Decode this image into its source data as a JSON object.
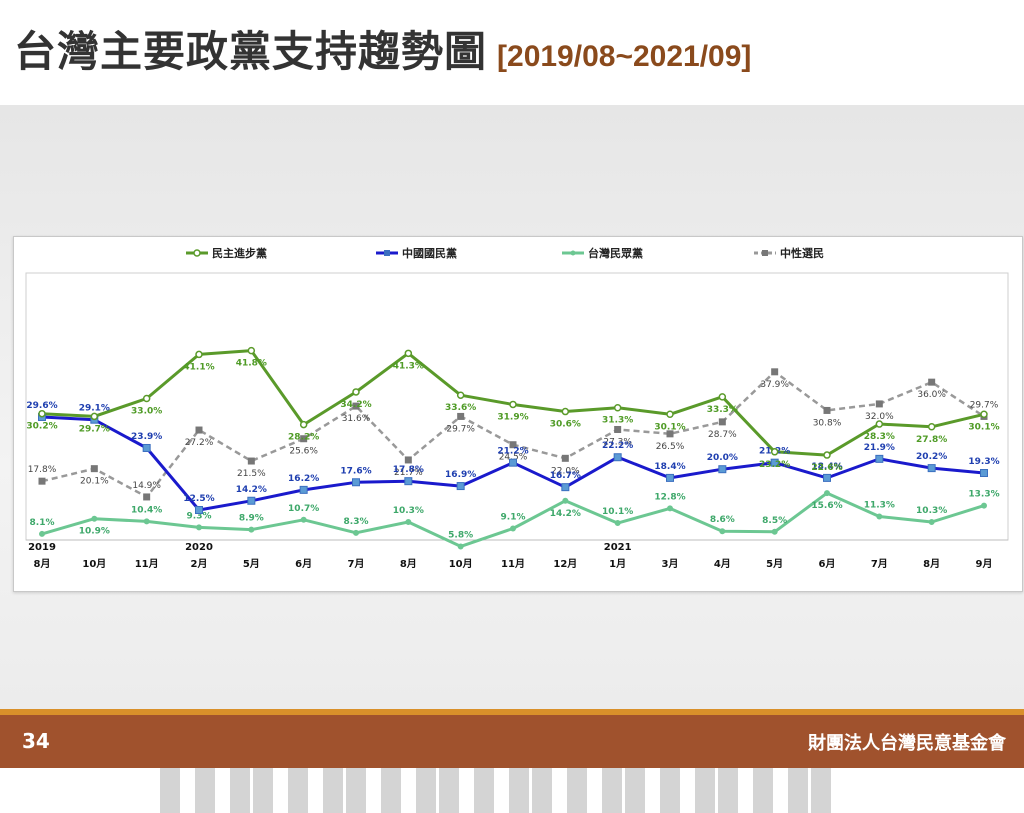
{
  "slide": {
    "title": "台灣主要政黨支持趨勢圖",
    "date_range": "[2019/08~2021/09]",
    "page_number": "34",
    "organization": "財團法人台灣民意基金會"
  },
  "chart_data": {
    "type": "line",
    "categories": [
      "8月",
      "10月",
      "11月",
      "2月",
      "5月",
      "6月",
      "7月",
      "8月",
      "10月",
      "11月",
      "12月",
      "1月",
      "3月",
      "4月",
      "5月",
      "6月",
      "7月",
      "8月",
      "9月"
    ],
    "year_labels": [
      {
        "index": 0,
        "label": "2019"
      },
      {
        "index": 3,
        "label": "2020"
      },
      {
        "index": 11,
        "label": "2021"
      }
    ],
    "ylim": [
      0,
      50
    ],
    "grid": false,
    "legend_position": "top",
    "series": [
      {
        "name": "民主進步黨",
        "color": "#5a9a2a",
        "label_color": "#4f9b26",
        "dash": false,
        "marker": "circle",
        "values": [
          30.2,
          29.7,
          33.0,
          41.1,
          41.8,
          28.2,
          34.2,
          41.3,
          33.6,
          31.9,
          30.6,
          31.3,
          30.1,
          33.3,
          23.2,
          22.6,
          28.3,
          27.8,
          30.1
        ],
        "labels": [
          "30.2%",
          "29.7%",
          "33.0%",
          "41.1%",
          "41.8%",
          "28.2%",
          "34.2%",
          "41.3%",
          "33.6%",
          "31.9%",
          "30.6%",
          "31.3%",
          "30.1%",
          "33.3%",
          "23.2%",
          "22.6%",
          "28.3%",
          "27.8%",
          "30.1%"
        ]
      },
      {
        "name": "中國國民黨",
        "color": "#1a1acc",
        "label_color": "#1f3fb0",
        "dash": false,
        "marker": "square",
        "values": [
          29.6,
          29.1,
          23.9,
          12.5,
          14.2,
          16.2,
          17.6,
          17.8,
          16.9,
          21.2,
          16.7,
          22.2,
          18.4,
          20.0,
          21.2,
          18.4,
          21.9,
          20.2,
          19.3
        ],
        "labels": [
          "29.6%",
          "29.1%",
          "23.9%",
          "12.5%",
          "14.2%",
          "16.2%",
          "17.6%",
          "17.8%",
          "16.9%",
          "21.2%",
          "16.7%",
          "22.2%",
          "18.4%",
          "20.0%",
          "21.2%",
          "18.4%",
          "21.9%",
          "20.2%",
          "19.3%"
        ]
      },
      {
        "name": "台灣民眾黨",
        "color": "#6cc792",
        "label_color": "#3ea86a",
        "dash": false,
        "marker": "triangle",
        "values": [
          8.1,
          10.9,
          10.4,
          9.3,
          8.9,
          10.7,
          8.3,
          10.3,
          5.8,
          9.1,
          14.2,
          10.1,
          12.8,
          8.6,
          8.5,
          15.6,
          11.3,
          10.3,
          13.3
        ],
        "labels": [
          "8.1%",
          "10.9%",
          "10.4%",
          "9.3%",
          "8.9%",
          "10.7%",
          "8.3%",
          "10.3%",
          "5.8%",
          "9.1%",
          "14.2%",
          "10.1%",
          "12.8%",
          "8.6%",
          "8.5%",
          "15.6%",
          "11.3%",
          "10.3%",
          "13.3%"
        ]
      },
      {
        "name": "中性選民",
        "color": "#999999",
        "label_color": "#444444",
        "dash": true,
        "marker": "square",
        "values": [
          17.8,
          20.1,
          14.9,
          27.2,
          21.5,
          25.6,
          31.6,
          21.7,
          29.7,
          24.5,
          22.0,
          27.3,
          26.5,
          28.7,
          37.9,
          30.8,
          32.0,
          36.0,
          29.7
        ],
        "labels": [
          "17.8%",
          "20.1%",
          "14.9%",
          "27.2%",
          "21.5%",
          "25.6%",
          "31.6%",
          "21.7%",
          "29.7%",
          "24.5%",
          "22.0%",
          "27.3%",
          "26.5%",
          "28.7%",
          "37.9%",
          "30.8%",
          "32.0%",
          "36.0%",
          "29.7%"
        ]
      }
    ]
  }
}
